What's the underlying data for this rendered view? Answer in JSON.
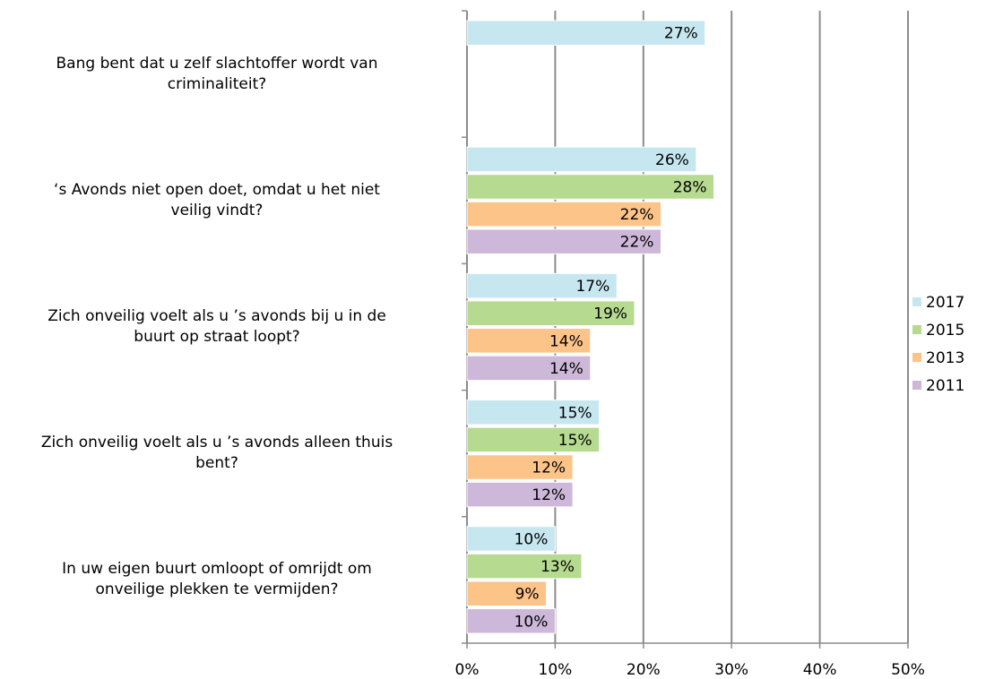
{
  "chart_data": {
    "type": "bar",
    "orientation": "horizontal",
    "categories": [
      "Bang bent dat u zelf slachtoffer wordt van\ncriminaliteit?",
      "‘s Avonds niet open doet, omdat u het niet\nveilig vindt?",
      "Zich onveilig voelt als u ’s avonds bij u in de\nbuurt op straat loopt?",
      "Zich onveilig voelt als u ’s avonds alleen thuis\nbent?",
      "In uw eigen buurt omloopt of omrijdt om\nonveilige plekken te vermijden?"
    ],
    "series": [
      {
        "name": "2017",
        "color": "#c6e7f0",
        "values": [
          27,
          26,
          17,
          15,
          10
        ],
        "value_labels": [
          "27%",
          "26%",
          "17%",
          "15%",
          "10%"
        ]
      },
      {
        "name": "2015",
        "color": "#b6da8f",
        "values": [
          null,
          28,
          19,
          15,
          13
        ],
        "value_labels": [
          null,
          "28%",
          "19%",
          "15%",
          "13%"
        ]
      },
      {
        "name": "2013",
        "color": "#fdc489",
        "values": [
          null,
          22,
          14,
          12,
          9
        ],
        "value_labels": [
          null,
          "22%",
          "14%",
          "12%",
          "9%"
        ]
      },
      {
        "name": "2011",
        "color": "#cdb8d9",
        "values": [
          null,
          22,
          14,
          12,
          10
        ],
        "value_labels": [
          null,
          "22%",
          "14%",
          "12%",
          "10%"
        ]
      }
    ],
    "xlim": [
      0,
      50
    ],
    "xticks": [
      {
        "value": 0,
        "label": "0%"
      },
      {
        "value": 10,
        "label": "10%"
      },
      {
        "value": 20,
        "label": "20%"
      },
      {
        "value": 30,
        "label": "30%"
      },
      {
        "value": 40,
        "label": "40%"
      },
      {
        "value": 50,
        "label": "50%"
      }
    ],
    "grid": true,
    "legend": "right"
  }
}
